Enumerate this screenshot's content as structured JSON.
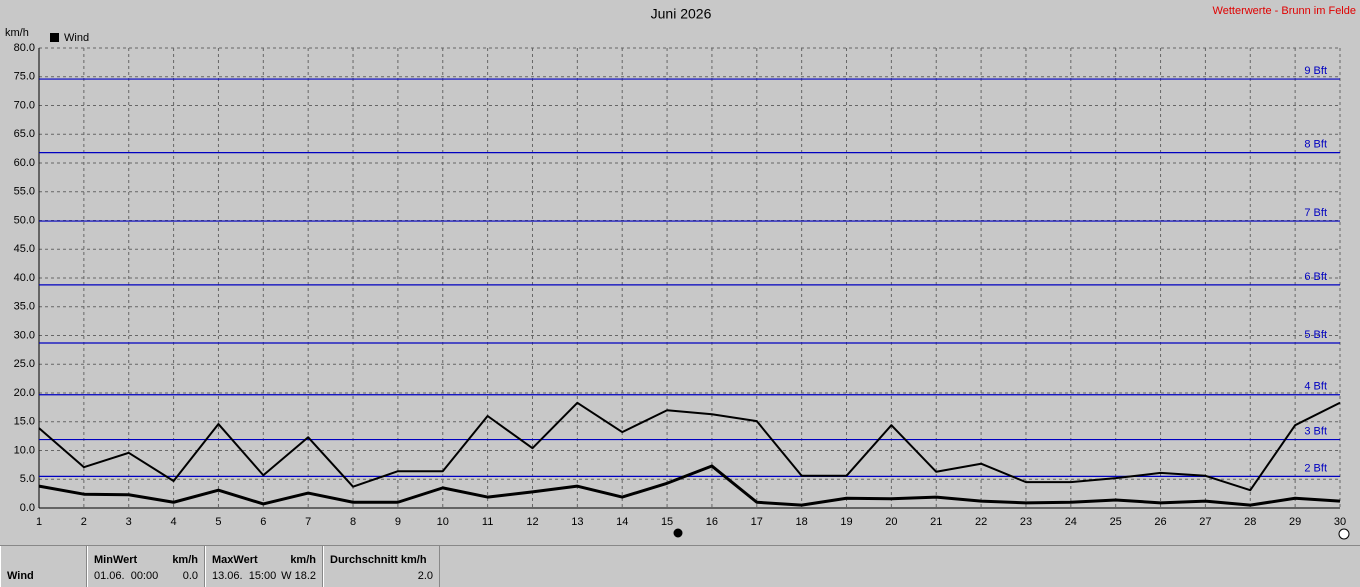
{
  "chart_data": {
    "type": "line",
    "title": "Juni 2026",
    "source": "Wetterwerte - Brunn im Felde",
    "y_label": "km/h",
    "x": [
      1,
      2,
      3,
      4,
      5,
      6,
      7,
      8,
      9,
      10,
      11,
      12,
      13,
      14,
      15,
      16,
      17,
      18,
      19,
      20,
      21,
      22,
      23,
      24,
      25,
      26,
      27,
      28,
      29,
      30
    ],
    "xlim": [
      1,
      30
    ],
    "xticks": [
      1,
      2,
      3,
      4,
      5,
      6,
      7,
      8,
      9,
      10,
      11,
      12,
      13,
      14,
      15,
      16,
      17,
      18,
      19,
      20,
      21,
      22,
      23,
      24,
      25,
      26,
      27,
      28,
      29,
      30
    ],
    "ylim": [
      0,
      80
    ],
    "yticks": [
      {
        "value": 0,
        "label": "0.0"
      },
      {
        "value": 5,
        "label": "5.0"
      },
      {
        "value": 10,
        "label": "10.0"
      },
      {
        "value": 15,
        "label": "15.0"
      },
      {
        "value": 20,
        "label": "20.0"
      },
      {
        "value": 25,
        "label": "25.0"
      },
      {
        "value": 30,
        "label": "30.0"
      },
      {
        "value": 35,
        "label": "35.0"
      },
      {
        "value": 40,
        "label": "40.0"
      },
      {
        "value": 45,
        "label": "45.0"
      },
      {
        "value": 50,
        "label": "50.0"
      },
      {
        "value": 55,
        "label": "55.0"
      },
      {
        "value": 60,
        "label": "60.0"
      },
      {
        "value": 65,
        "label": "65.0"
      },
      {
        "value": 70,
        "label": "70.0"
      },
      {
        "value": 75,
        "label": "75.0"
      },
      {
        "value": 80,
        "label": "80.0"
      }
    ],
    "grid": true,
    "series": [
      {
        "name": "Wind",
        "color": "#000000",
        "values": [
          3.8,
          2.4,
          2.3,
          1.0,
          3.1,
          0.7,
          2.6,
          1.0,
          1.0,
          3.5,
          1.9,
          2.8,
          3.8,
          1.9,
          4.3,
          7.3,
          1.0,
          0.5,
          1.7,
          1.6,
          1.9,
          1.2,
          0.9,
          1.0,
          1.4,
          0.9,
          1.2,
          0.5,
          1.7,
          1.2
        ]
      },
      {
        "color": "#000000",
        "values": [
          13.9,
          7.1,
          9.6,
          4.7,
          14.6,
          5.7,
          12.3,
          3.7,
          6.4,
          6.4,
          16.0,
          10.4,
          18.3,
          13.2,
          17.0,
          16.3,
          15.1,
          5.6,
          5.6,
          14.4,
          6.3,
          7.7,
          4.5,
          4.5,
          5.2,
          6.1,
          5.6,
          3.1,
          14.4,
          18.3
        ]
      }
    ],
    "bft_lines": {
      "color": "#0000c0",
      "lines": [
        {
          "value": 5.5,
          "label": "2 Bft"
        },
        {
          "value": 11.9,
          "label": "3 Bft"
        },
        {
          "value": 19.7,
          "label": "4 Bft"
        },
        {
          "value": 28.7,
          "label": "5 Bft"
        },
        {
          "value": 38.8,
          "label": "6 Bft"
        },
        {
          "value": 49.9,
          "label": "7 Bft"
        },
        {
          "value": 61.8,
          "label": "8 Bft"
        },
        {
          "value": 74.6,
          "label": "9 Bft"
        }
      ]
    }
  },
  "summary": {
    "name": "Wind",
    "min_header": "MinWert",
    "min_unit": "km/h",
    "min_time": "01.06.  00:00",
    "min_value": "0.0",
    "max_header": "MaxWert",
    "max_unit": "km/h",
    "max_time": "13.06.  15:00",
    "max_value": "W 18.2",
    "avg_header": "Durchschnitt km/h",
    "avg_value": "2.0"
  }
}
